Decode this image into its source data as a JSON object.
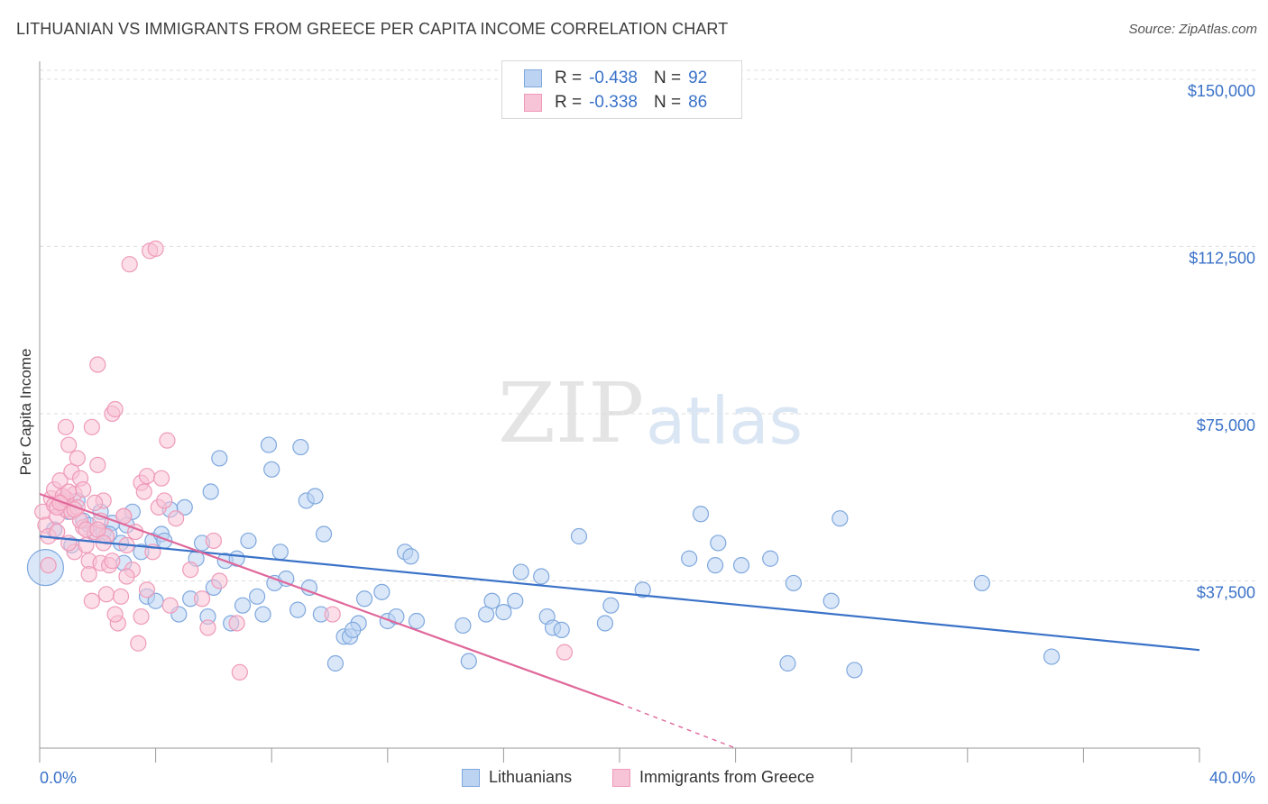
{
  "title": "LITHUANIAN VS IMMIGRANTS FROM GREECE PER CAPITA INCOME CORRELATION CHART",
  "source": "Source: ZipAtlas.com",
  "watermark": {
    "zip": "ZIP",
    "atlas": "atlas"
  },
  "legend_top": {
    "r_label": "R =",
    "n_label": "N =",
    "rows": [
      {
        "r": "-0.438",
        "n": "92"
      },
      {
        "r": "-0.338",
        "n": "86"
      }
    ]
  },
  "bottom_legend": {
    "series1": "Lithuanians",
    "series2": "Immigrants from Greece"
  },
  "colors": {
    "blue": "#3a72c8",
    "blue_fill": "#bcd4f2",
    "blue_stroke": "#7fa8de",
    "pink": "#e0679a",
    "pink_fill": "#f7c3d6",
    "pink_stroke": "#ef9ab9",
    "grid": "#dddddd"
  },
  "chart_data": {
    "type": "scatter",
    "title": "LITHUANIAN VS IMMIGRANTS FROM GREECE PER CAPITA INCOME CORRELATION CHART",
    "xlabel": "",
    "ylabel": "Per Capita Income",
    "xlim": [
      0,
      40
    ],
    "ylim": [
      0,
      152000
    ],
    "x_tick_labels": [
      "0.0%",
      "40.0%"
    ],
    "y_ticks": [
      37500,
      75000,
      112500,
      150000
    ],
    "y_tick_labels": [
      "$37,500",
      "$75,000",
      "$112,500",
      "$150,000"
    ],
    "series": [
      {
        "name": "Lithuanians",
        "r": -0.438,
        "n": 92,
        "trend": {
          "x0": 0,
          "y0": 47500,
          "x1": 40,
          "y1": 22000
        },
        "points": [
          [
            0.2,
            40500
          ],
          [
            0.8,
            55500
          ],
          [
            1.0,
            53000
          ],
          [
            1.3,
            55500
          ],
          [
            1.5,
            51000
          ],
          [
            1.7,
            50000
          ],
          [
            1.9,
            48000
          ],
          [
            2.1,
            53000
          ],
          [
            2.2,
            48500
          ],
          [
            2.5,
            50500
          ],
          [
            2.8,
            46000
          ],
          [
            2.9,
            41500
          ],
          [
            3.2,
            53000
          ],
          [
            3.5,
            44000
          ],
          [
            3.7,
            34000
          ],
          [
            3.9,
            46500
          ],
          [
            4.2,
            48000
          ],
          [
            4.3,
            46500
          ],
          [
            4.5,
            53500
          ],
          [
            4.8,
            30000
          ],
          [
            5.0,
            54000
          ],
          [
            5.2,
            33500
          ],
          [
            5.4,
            42500
          ],
          [
            5.6,
            46000
          ],
          [
            5.8,
            29500
          ],
          [
            5.9,
            57500
          ],
          [
            6.0,
            36000
          ],
          [
            6.2,
            65000
          ],
          [
            6.4,
            42000
          ],
          [
            6.6,
            28000
          ],
          [
            6.8,
            42500
          ],
          [
            7.0,
            32000
          ],
          [
            7.2,
            46500
          ],
          [
            7.5,
            34000
          ],
          [
            7.7,
            30000
          ],
          [
            7.9,
            68000
          ],
          [
            8.0,
            62500
          ],
          [
            8.1,
            37000
          ],
          [
            8.3,
            44000
          ],
          [
            8.5,
            38000
          ],
          [
            8.9,
            31000
          ],
          [
            9.0,
            67500
          ],
          [
            9.2,
            55500
          ],
          [
            9.3,
            36000
          ],
          [
            9.5,
            56500
          ],
          [
            9.7,
            30000
          ],
          [
            9.8,
            48000
          ],
          [
            10.2,
            19000
          ],
          [
            10.5,
            25000
          ],
          [
            10.7,
            25000
          ],
          [
            11.0,
            28000
          ],
          [
            11.2,
            33500
          ],
          [
            11.8,
            35000
          ],
          [
            12.0,
            28500
          ],
          [
            12.3,
            29500
          ],
          [
            12.6,
            44000
          ],
          [
            12.8,
            43000
          ],
          [
            13.0,
            28500
          ],
          [
            14.6,
            27500
          ],
          [
            14.8,
            19500
          ],
          [
            15.4,
            30000
          ],
          [
            15.6,
            33000
          ],
          [
            16.0,
            30500
          ],
          [
            16.4,
            33000
          ],
          [
            16.6,
            39500
          ],
          [
            17.3,
            38500
          ],
          [
            17.5,
            29500
          ],
          [
            17.7,
            27000
          ],
          [
            18.0,
            26500
          ],
          [
            18.6,
            47500
          ],
          [
            19.5,
            28000
          ],
          [
            19.7,
            32000
          ],
          [
            20.8,
            35500
          ],
          [
            22.4,
            42500
          ],
          [
            22.8,
            52500
          ],
          [
            23.3,
            41000
          ],
          [
            23.4,
            46000
          ],
          [
            24.2,
            41000
          ],
          [
            25.2,
            42500
          ],
          [
            25.8,
            19000
          ],
          [
            26.0,
            37000
          ],
          [
            27.3,
            33000
          ],
          [
            27.6,
            51500
          ],
          [
            28.1,
            17500
          ],
          [
            32.5,
            37000
          ],
          [
            34.9,
            20500
          ],
          [
            0.5,
            49000
          ],
          [
            1.1,
            45500
          ],
          [
            2.4,
            48000
          ],
          [
            3.0,
            50000
          ],
          [
            4.0,
            33000
          ],
          [
            10.8,
            26500
          ]
        ]
      },
      {
        "name": "Immigrants from Greece",
        "r": -0.338,
        "n": 86,
        "trend": {
          "x0": 0,
          "y0": 57000,
          "x1": 20,
          "y1": 10000
        },
        "trend_dashed_to": {
          "x": 24,
          "y": 0
        },
        "points": [
          [
            0.1,
            53000
          ],
          [
            0.2,
            50000
          ],
          [
            0.3,
            47500
          ],
          [
            0.4,
            56000
          ],
          [
            0.5,
            58000
          ],
          [
            0.5,
            54500
          ],
          [
            0.6,
            52000
          ],
          [
            0.7,
            60000
          ],
          [
            0.8,
            55000
          ],
          [
            0.9,
            53500
          ],
          [
            0.9,
            72000
          ],
          [
            1.0,
            68000
          ],
          [
            1.1,
            62000
          ],
          [
            1.2,
            57000
          ],
          [
            1.2,
            44000
          ],
          [
            1.3,
            65000
          ],
          [
            1.4,
            60500
          ],
          [
            1.5,
            58000
          ],
          [
            1.5,
            49500
          ],
          [
            1.6,
            45500
          ],
          [
            1.7,
            42000
          ],
          [
            1.7,
            39000
          ],
          [
            1.8,
            72000
          ],
          [
            1.8,
            33000
          ],
          [
            1.9,
            48500
          ],
          [
            2.0,
            63500
          ],
          [
            2.1,
            51000
          ],
          [
            2.1,
            41500
          ],
          [
            2.2,
            55500
          ],
          [
            2.3,
            47500
          ],
          [
            2.3,
            34500
          ],
          [
            2.4,
            41000
          ],
          [
            2.5,
            75000
          ],
          [
            2.6,
            76000
          ],
          [
            2.7,
            28000
          ],
          [
            2.8,
            34000
          ],
          [
            2.9,
            52000
          ],
          [
            3.0,
            45500
          ],
          [
            3.1,
            108500
          ],
          [
            3.2,
            40000
          ],
          [
            3.3,
            48500
          ],
          [
            3.4,
            23500
          ],
          [
            3.5,
            29500
          ],
          [
            3.5,
            59500
          ],
          [
            3.6,
            57500
          ],
          [
            3.7,
            61000
          ],
          [
            3.7,
            35500
          ],
          [
            3.8,
            111500
          ],
          [
            3.9,
            44000
          ],
          [
            4.0,
            112000
          ],
          [
            4.1,
            54000
          ],
          [
            4.2,
            60500
          ],
          [
            4.3,
            55500
          ],
          [
            4.4,
            69000
          ],
          [
            4.5,
            32000
          ],
          [
            4.7,
            51500
          ],
          [
            5.2,
            40000
          ],
          [
            5.6,
            33500
          ],
          [
            5.8,
            27000
          ],
          [
            6.0,
            46500
          ],
          [
            6.2,
            37500
          ],
          [
            6.8,
            28000
          ],
          [
            6.9,
            17000
          ],
          [
            2.0,
            86000
          ],
          [
            2.9,
            52000
          ],
          [
            0.6,
            54000
          ],
          [
            0.9,
            56000
          ],
          [
            1.1,
            53000
          ],
          [
            1.4,
            51000
          ],
          [
            1.6,
            49000
          ],
          [
            2.0,
            49000
          ],
          [
            2.2,
            46000
          ],
          [
            2.5,
            42000
          ],
          [
            1.3,
            54000
          ],
          [
            0.8,
            56500
          ],
          [
            1.0,
            57500
          ],
          [
            0.7,
            55000
          ],
          [
            1.2,
            53500
          ],
          [
            1.9,
            55000
          ],
          [
            10.1,
            30000
          ],
          [
            18.1,
            21500
          ],
          [
            0.3,
            41000
          ],
          [
            2.6,
            30000
          ],
          [
            3.0,
            38500
          ],
          [
            1.0,
            46000
          ],
          [
            0.6,
            48500
          ]
        ]
      }
    ]
  }
}
